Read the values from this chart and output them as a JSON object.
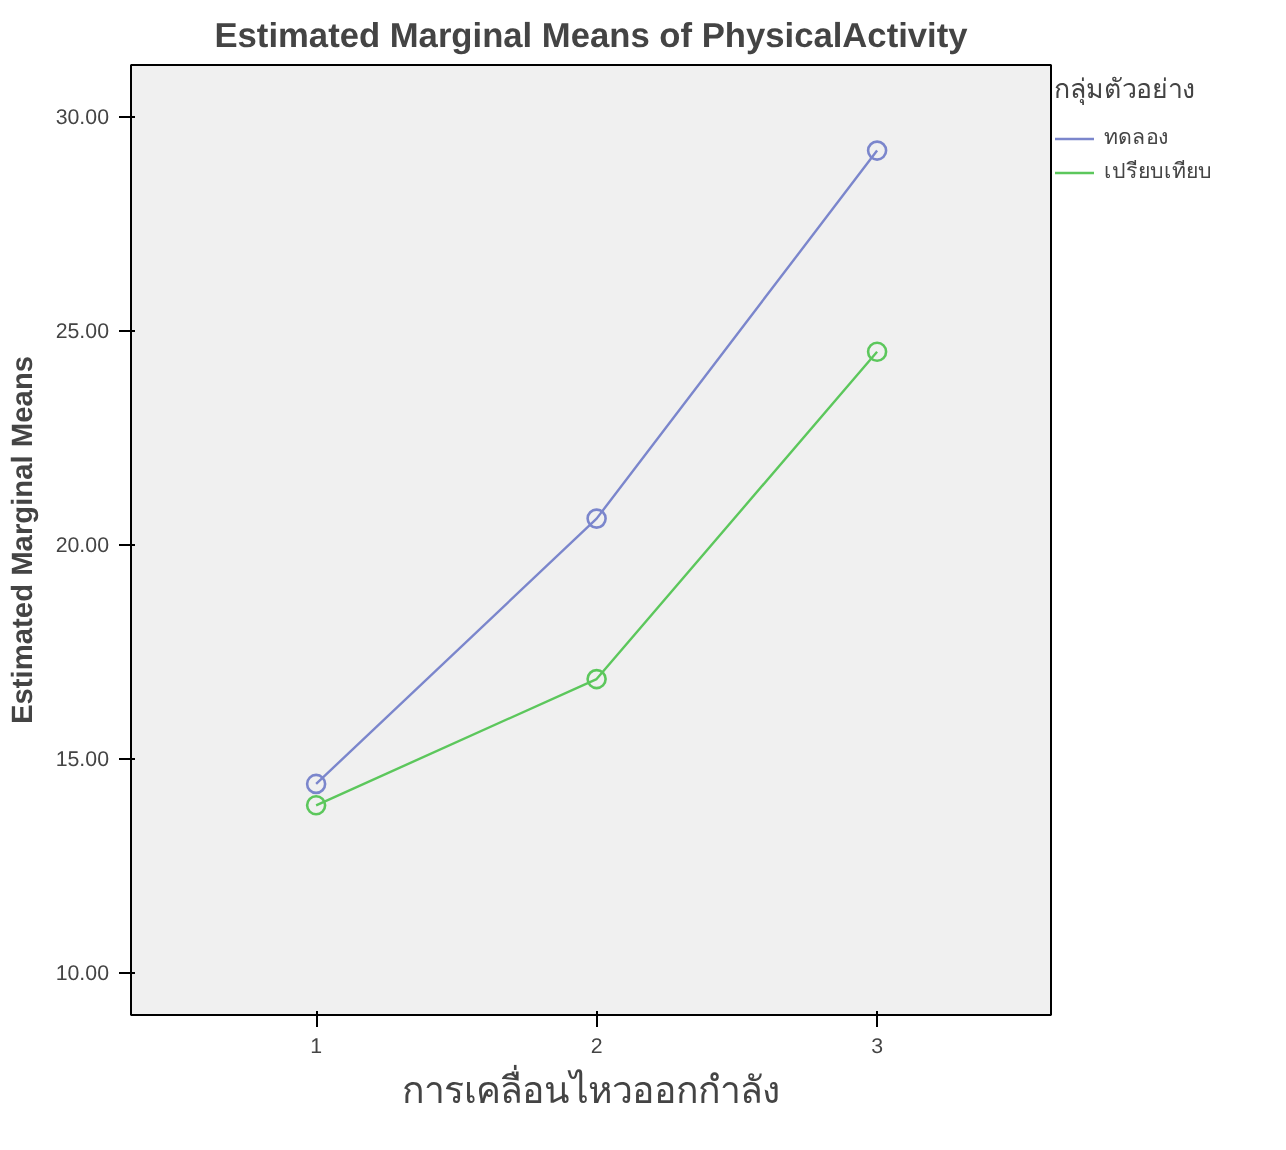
{
  "chart_data": {
    "type": "line",
    "title": "Estimated Marginal Means of PhysicalActivity",
    "xlabel": "การเคลื่อนไหวออกกำลัง",
    "ylabel": "Estimated Marginal Means",
    "legend_title": "กลุ่มตัวอย่าง",
    "x": [
      1,
      2,
      3
    ],
    "series": [
      {
        "name": "ทดลอง",
        "color": "#7b86cc",
        "values": [
          14.4,
          20.6,
          29.2
        ]
      },
      {
        "name": "เปรียบเทียบ",
        "color": "#5cc75c",
        "values": [
          13.9,
          16.85,
          24.5
        ]
      }
    ],
    "xlim": [
      0.34,
      3.62
    ],
    "ylim": [
      9.0,
      31.2
    ],
    "xticks": [
      1,
      2,
      3
    ],
    "yticks": [
      {
        "value": 10,
        "label": "10.00"
      },
      {
        "value": 15,
        "label": "15.00"
      },
      {
        "value": 20,
        "label": "20.00"
      },
      {
        "value": 25,
        "label": "25.00"
      },
      {
        "value": 30,
        "label": "30.00"
      }
    ],
    "marker": "circle",
    "line_style": "solid",
    "grid": false,
    "legend": "top right"
  }
}
